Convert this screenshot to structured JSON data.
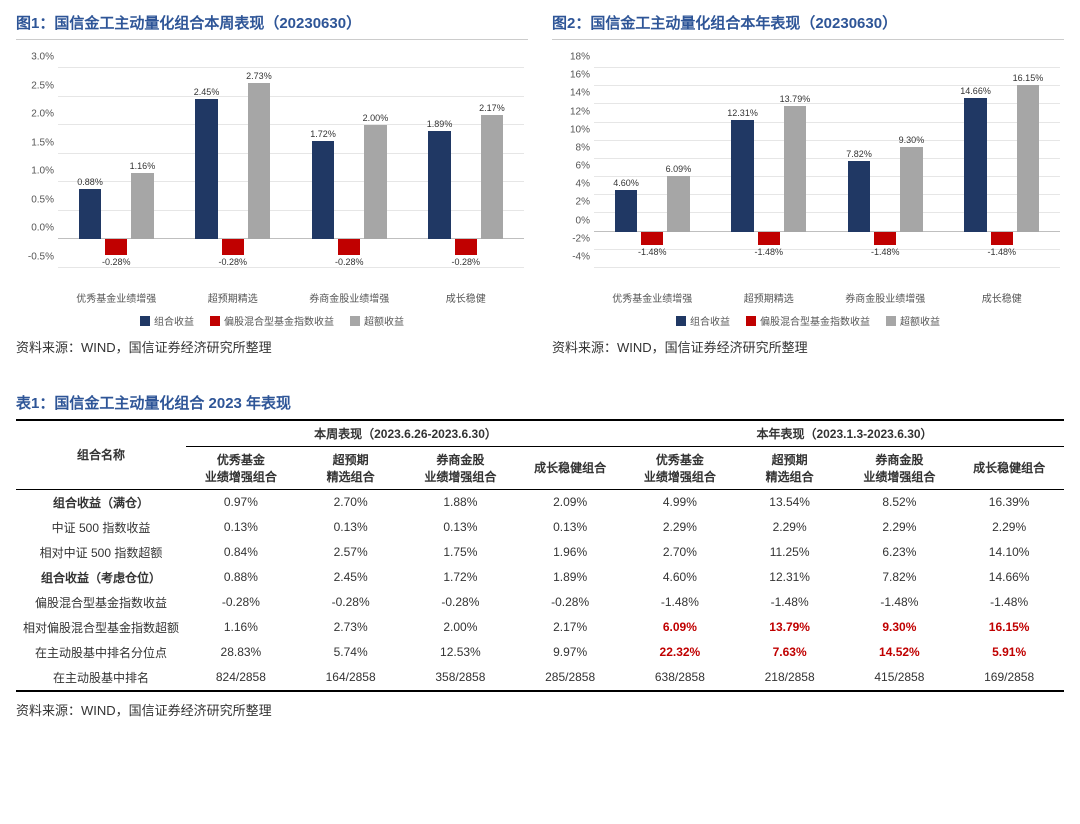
{
  "colors": {
    "series1": "#203864",
    "series2": "#c00000",
    "series3": "#a6a6a6",
    "grid": "#e6e6e6",
    "title": "#2e5597",
    "red_text": "#c00000"
  },
  "chart1": {
    "title": "图1：国信金工主动量化组合本周表现（20230630）",
    "y_min": -0.5,
    "y_max": 3.0,
    "y_step": 0.5,
    "y_fmt": "percent1",
    "categories": [
      "优秀基金业绩增强",
      "超预期精选",
      "券商金股业绩增强",
      "成长稳健"
    ],
    "series_labels": [
      "组合收益",
      "偏股混合型基金指数收益",
      "超额收益"
    ],
    "data": [
      [
        0.88,
        -0.28,
        1.16
      ],
      [
        2.45,
        -0.28,
        2.73
      ],
      [
        1.72,
        -0.28,
        2.0
      ],
      [
        1.89,
        -0.28,
        2.17
      ]
    ],
    "source": "资料来源：WIND，国信证券经济研究所整理"
  },
  "chart2": {
    "title": "图2：国信金工主动量化组合本年表现（20230630）",
    "y_min": -4,
    "y_max": 18,
    "y_step": 2,
    "y_fmt": "percent0",
    "categories": [
      "优秀基金业绩增强",
      "超预期精选",
      "券商金股业绩增强",
      "成长稳健"
    ],
    "series_labels": [
      "组合收益",
      "偏股混合型基金指数收益",
      "超额收益"
    ],
    "data": [
      [
        4.6,
        -1.48,
        6.09
      ],
      [
        12.31,
        -1.48,
        13.79
      ],
      [
        7.82,
        -1.48,
        9.3
      ],
      [
        14.66,
        -1.48,
        16.15
      ]
    ],
    "source": "资料来源：WIND，国信证券经济研究所整理"
  },
  "table": {
    "title": "表1：国信金工主动量化组合 2023 年表现",
    "group_headers": [
      "本周表现（2023.6.26-2023.6.30）",
      "本年表现（2023.1.3-2023.6.30）"
    ],
    "rowname_header": "组合名称",
    "col_headers": [
      "优秀基金\n业绩增强组合",
      "超预期\n精选组合",
      "券商金股\n业绩增强组合",
      "成长稳健组合",
      "优秀基金\n业绩增强组合",
      "超预期\n精选组合",
      "券商金股\n业绩增强组合",
      "成长稳健组合"
    ],
    "rows": [
      {
        "name": "组合收益（满仓）",
        "bold": true,
        "cells": [
          "0.97%",
          "2.70%",
          "1.88%",
          "2.09%",
          "4.99%",
          "13.54%",
          "8.52%",
          "16.39%"
        ]
      },
      {
        "name": "中证 500 指数收益",
        "cells": [
          "0.13%",
          "0.13%",
          "0.13%",
          "0.13%",
          "2.29%",
          "2.29%",
          "2.29%",
          "2.29%"
        ]
      },
      {
        "name": "相对中证 500 指数超额",
        "cells": [
          "0.84%",
          "2.57%",
          "1.75%",
          "1.96%",
          "2.70%",
          "11.25%",
          "6.23%",
          "14.10%"
        ]
      },
      {
        "name": "组合收益（考虑仓位）",
        "bold": true,
        "cells": [
          "0.88%",
          "2.45%",
          "1.72%",
          "1.89%",
          "4.60%",
          "12.31%",
          "7.82%",
          "14.66%"
        ]
      },
      {
        "name": "偏股混合型基金指数收益",
        "cells": [
          "-0.28%",
          "-0.28%",
          "-0.28%",
          "-0.28%",
          "-1.48%",
          "-1.48%",
          "-1.48%",
          "-1.48%"
        ]
      },
      {
        "name": "相对偏股混合型基金指数超额",
        "cells": [
          "1.16%",
          "2.73%",
          "2.00%",
          "2.17%",
          "6.09%",
          "13.79%",
          "9.30%",
          "16.15%"
        ],
        "red_cols": [
          4,
          5,
          6,
          7
        ]
      },
      {
        "name": "在主动股基中排名分位点",
        "cells": [
          "28.83%",
          "5.74%",
          "12.53%",
          "9.97%",
          "22.32%",
          "7.63%",
          "14.52%",
          "5.91%"
        ],
        "red_cols": [
          4,
          5,
          6,
          7
        ]
      },
      {
        "name": "在主动股基中排名",
        "cells": [
          "824/2858",
          "164/2858",
          "358/2858",
          "285/2858",
          "638/2858",
          "218/2858",
          "415/2858",
          "169/2858"
        ]
      }
    ],
    "source": "资料来源：WIND，国信证券经济研究所整理"
  }
}
